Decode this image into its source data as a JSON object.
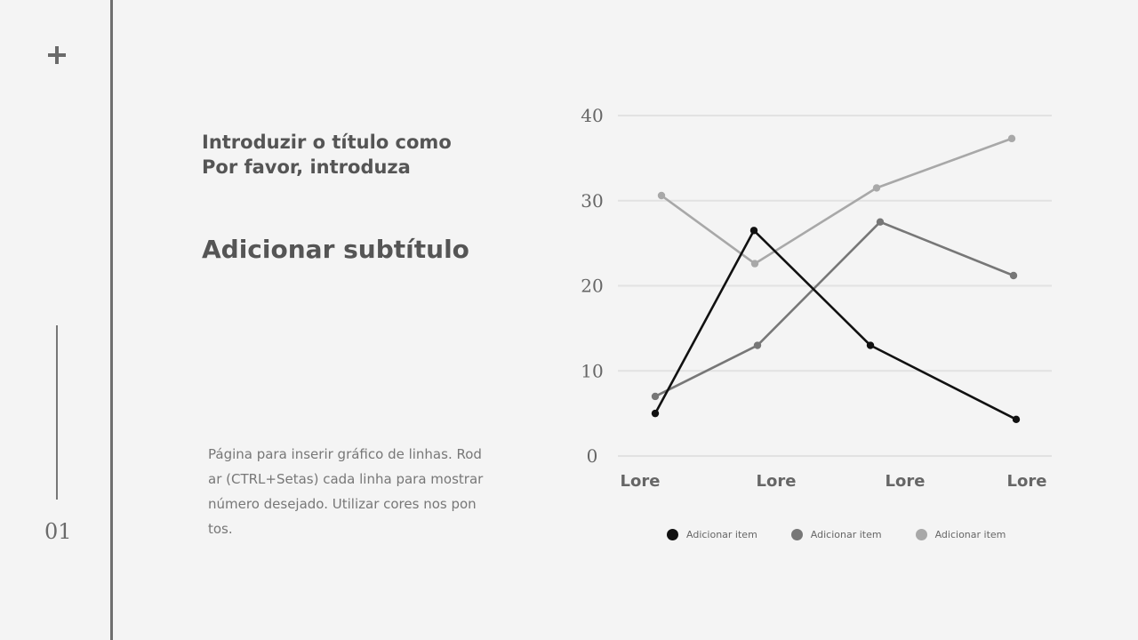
{
  "slide": {
    "page_number": "01",
    "title_lines": [
      "Introduzir o título como",
      "Por favor, introduza"
    ],
    "subtitle": "Adicionar subtítulo",
    "body_lines": [
      "Página para inserir gráfico de linhas. Rod",
      "ar (CTRL+Setas) cada linha para mostrar",
      "número desejado. Utilizar cores nos pon",
      "tos."
    ]
  },
  "chart_data": {
    "type": "line",
    "categories": [
      "Lore",
      "Lore",
      "Lore",
      "Lore"
    ],
    "ylim": [
      0,
      40
    ],
    "yticks": [
      0,
      10,
      20,
      30,
      40
    ],
    "grid": true,
    "legend_position": "bottom",
    "series": [
      {
        "name": "Adicionar item",
        "color": "#111111",
        "values": [
          5,
          26.5,
          13,
          4.3
        ]
      },
      {
        "name": "Adicionar item",
        "color": "#777777",
        "values": [
          7,
          13,
          27.5,
          21.2
        ]
      },
      {
        "name": "Adicionar item",
        "color": "#a8a8a8",
        "values": [
          30.6,
          22.6,
          31.5,
          37.3
        ]
      }
    ]
  }
}
